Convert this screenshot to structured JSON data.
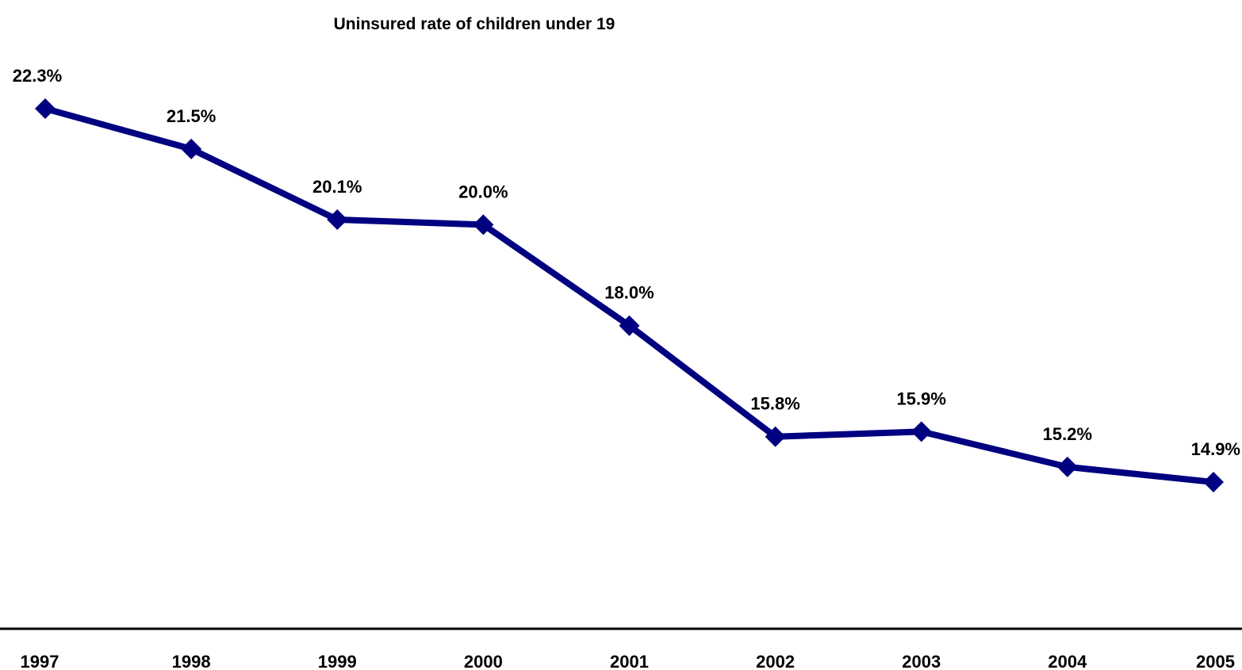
{
  "chart_data": {
    "type": "line",
    "title": "Uninsured rate of children under 19",
    "xlabel": "",
    "ylabel": "",
    "categories": [
      "1997",
      "1998",
      "1999",
      "2000",
      "2001",
      "2002",
      "2003",
      "2004",
      "2005"
    ],
    "series": [
      {
        "values": [
          22.3,
          21.5,
          20.1,
          20.0,
          18.0,
          15.8,
          15.9,
          15.2,
          14.9
        ],
        "data_labels": [
          "22.3%",
          "21.5%",
          "20.1%",
          "20.0%",
          "18.0%",
          "15.8%",
          "15.9%",
          "15.2%",
          "14.9%"
        ],
        "color": "#000080",
        "marker": "diamond"
      }
    ],
    "ylim": [
      12.8,
      24.5
    ],
    "grid": false,
    "legend": "none"
  }
}
